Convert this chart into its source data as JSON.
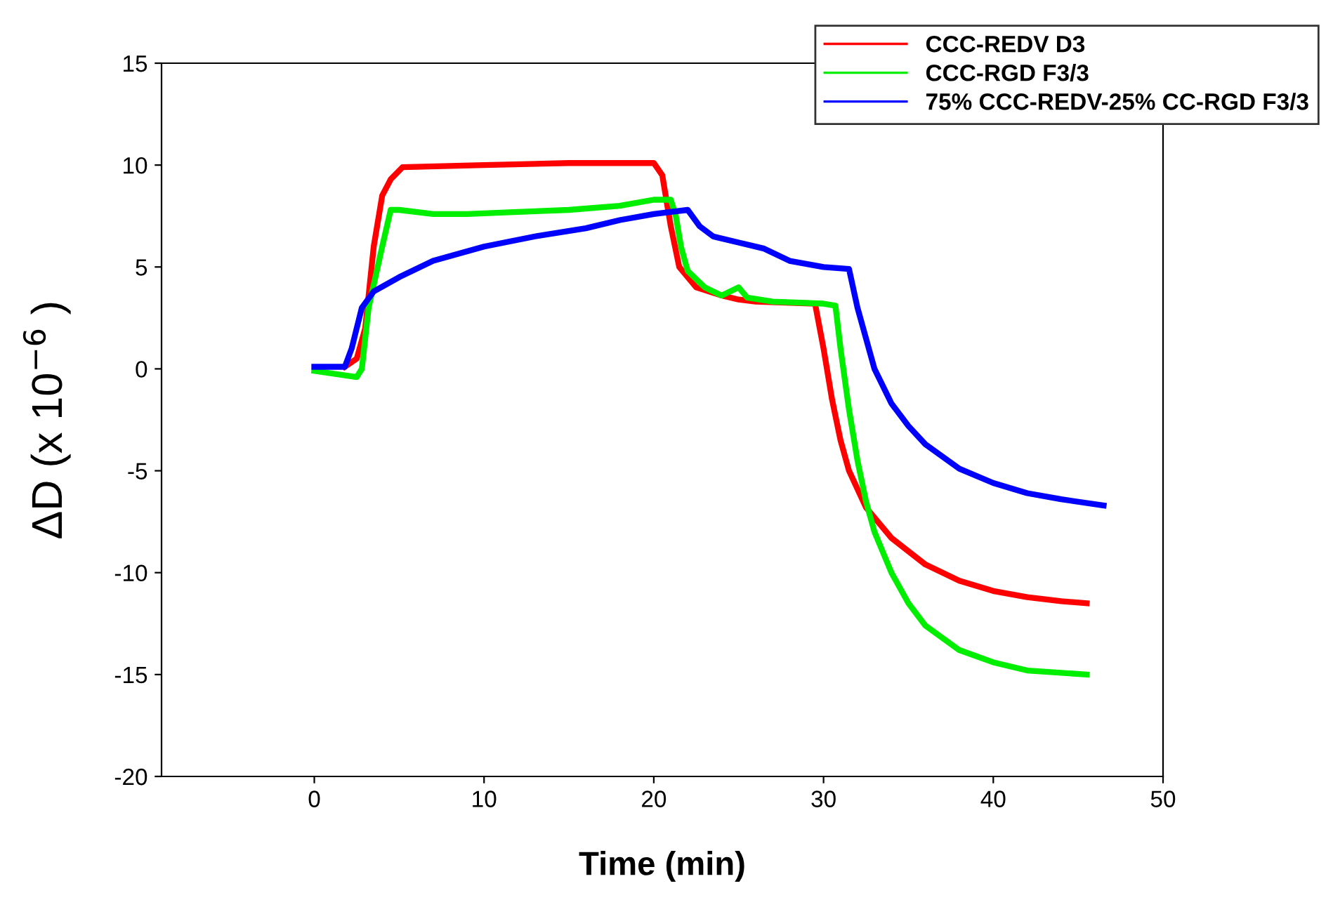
{
  "chart_data": {
    "type": "line",
    "xlabel": "Time (min)",
    "ylabel": "ΔD (x 10$^{−6}$ )",
    "xlim": [
      -9,
      50
    ],
    "xticks": [
      0,
      10,
      20,
      30,
      40,
      50
    ],
    "ylim": [
      -20,
      15
    ],
    "yticks": [
      -20,
      -15,
      -10,
      -5,
      0,
      5,
      10,
      15
    ],
    "grid": false,
    "legend": "top right",
    "line_style": "solid",
    "series": [
      {
        "name": "CCC-REDV D3",
        "color": "#ff0000",
        "x": [
          1.8,
          2.5,
          3,
          3.5,
          4,
          4.5,
          5.2,
          10,
          15,
          19,
          20,
          20.5,
          21,
          21.5,
          22.5,
          24,
          25,
          26,
          29.5,
          30,
          30.5,
          31,
          31.5,
          32.5,
          34,
          36,
          38,
          40,
          42,
          44,
          45.5
        ],
        "values": [
          0.1,
          0.5,
          2,
          6,
          8.5,
          9.3,
          9.9,
          10,
          10.1,
          10.1,
          10.1,
          9.5,
          7,
          5,
          4,
          3.6,
          3.4,
          3.3,
          3.2,
          1,
          -1.5,
          -3.5,
          -5,
          -6.8,
          -8.3,
          -9.6,
          -10.4,
          -10.9,
          -11.2,
          -11.4,
          -11.5
        ]
      },
      {
        "name": "CCC-RGD F3/3",
        "color": "#00ee00",
        "x": [
          0,
          2.5,
          2.8,
          3.2,
          3.6,
          4,
          4.5,
          5,
          7,
          9,
          12,
          15,
          18,
          20,
          21,
          21.3,
          21.6,
          22,
          23,
          24,
          25,
          25.5,
          27,
          30,
          30.7,
          31,
          31.5,
          32,
          32.5,
          33,
          34,
          35,
          36,
          38,
          40,
          42,
          45.5
        ],
        "values": [
          -0.1,
          -0.4,
          0,
          3,
          4.5,
          6,
          7.8,
          7.8,
          7.6,
          7.6,
          7.7,
          7.8,
          8,
          8.3,
          8.3,
          7.5,
          6,
          4.8,
          4,
          3.6,
          4,
          3.5,
          3.3,
          3.2,
          3.1,
          1,
          -2,
          -4.5,
          -6.5,
          -8,
          -10,
          -11.5,
          -12.6,
          -13.8,
          -14.4,
          -14.8,
          -15
        ]
      },
      {
        "name": "75% CCC-REDV-25% CC-RGD F3/3",
        "color": "#0000ff",
        "x": [
          0,
          1.8,
          2.2,
          2.8,
          3.5,
          5,
          7,
          10,
          13,
          16,
          18,
          20,
          21,
          22,
          22.7,
          23.5,
          25,
          26.5,
          27,
          28,
          30,
          31.5,
          32,
          33,
          34,
          35,
          36,
          38,
          40,
          42,
          44,
          46.5
        ],
        "values": [
          0.1,
          0.1,
          1,
          3,
          3.8,
          4.5,
          5.3,
          6,
          6.5,
          6.9,
          7.3,
          7.6,
          7.7,
          7.8,
          7,
          6.5,
          6.2,
          5.9,
          5.7,
          5.3,
          5,
          4.9,
          3,
          0,
          -1.7,
          -2.8,
          -3.7,
          -4.9,
          -5.6,
          -6.1,
          -6.4,
          -6.7
        ]
      }
    ]
  }
}
